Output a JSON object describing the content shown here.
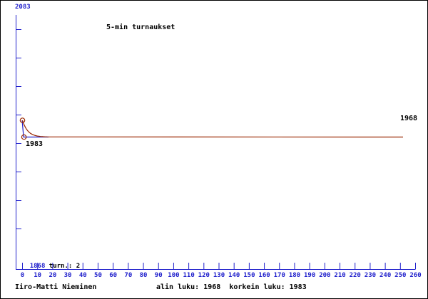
{
  "colors": {
    "axis": "#2020cc",
    "trend": "#992600",
    "text": "#000000",
    "background": "#ffffff"
  },
  "labels": {
    "turn_count": "turn.: 2"
  },
  "footer": {
    "player": "Iiro-Matti Nieminen",
    "stats": "alin luku: 1968  korkein luku: 1983"
  },
  "chart_data": {
    "type": "line",
    "title": "5-min turnaukset",
    "x_axis": {
      "min": 0,
      "max": 260,
      "step": 10,
      "tick_labels": [
        "0",
        "10",
        "20",
        "30",
        "40",
        "50",
        "60",
        "70",
        "80",
        "90",
        "100",
        "110",
        "120",
        "130",
        "140",
        "150",
        "160",
        "170",
        "180",
        "190",
        "200",
        "210",
        "220",
        "230",
        "240",
        "250",
        "260"
      ]
    },
    "y_axis": {
      "top_label": "2083",
      "bottom_label": "1868"
    },
    "series": [
      {
        "name": "tournament-ratings",
        "points": [
          {
            "tournament": 0,
            "rating": 1983
          },
          {
            "tournament": 1,
            "rating": 1968
          }
        ]
      },
      {
        "name": "trend-curve",
        "from_rating": 1983,
        "to_rating": 1968,
        "flat_until_x": 252
      }
    ],
    "point_label_first": "1983",
    "point_label_last": "1968",
    "tournaments_played": 2,
    "lowest_rating": 1968,
    "highest_rating": 1983,
    "legend": "none",
    "grid": "off"
  }
}
